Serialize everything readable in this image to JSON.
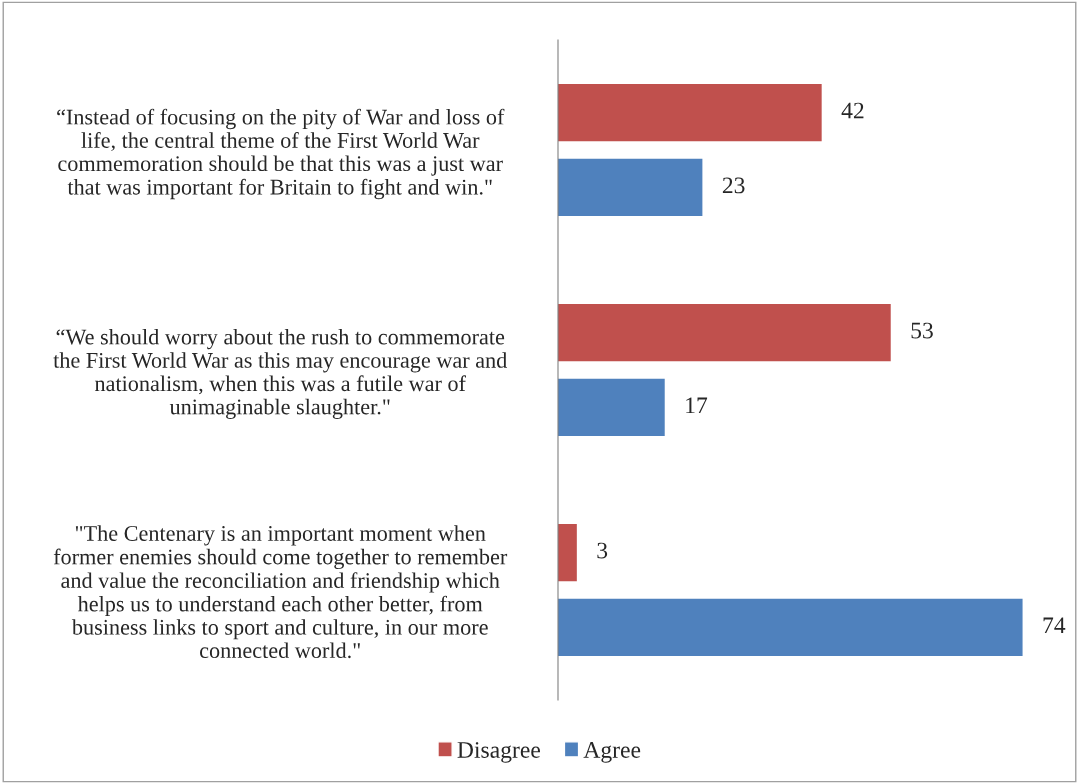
{
  "chart_data": {
    "type": "bar",
    "orientation": "horizontal",
    "categories": [
      "“Instead of focusing on the pity of War and loss of\nlife, the central theme of the First World War\ncommemoration should be that this was a just war\nthat was important for Britain to fight and win.\"",
      "“We should worry about the rush to commemorate\nthe First World War as this may encourage war and\nnationalism, when this was a futile war of\nunimaginable slaughter.\"",
      "\"The Centenary is an important moment when\nformer enemies should come together to remember\nand value the reconciliation and friendship which\nhelps us to understand each other better, from\nbusiness links to sport and culture, in our more\nconnected world.\""
    ],
    "series": [
      {
        "name": "Disagree",
        "color": "#c0504d",
        "values": [
          42,
          53,
          3
        ]
      },
      {
        "name": "Agree",
        "color": "#4f81bd",
        "values": [
          23,
          17,
          74
        ]
      }
    ],
    "data_labels": true,
    "legend": "bottom",
    "grid": false
  }
}
